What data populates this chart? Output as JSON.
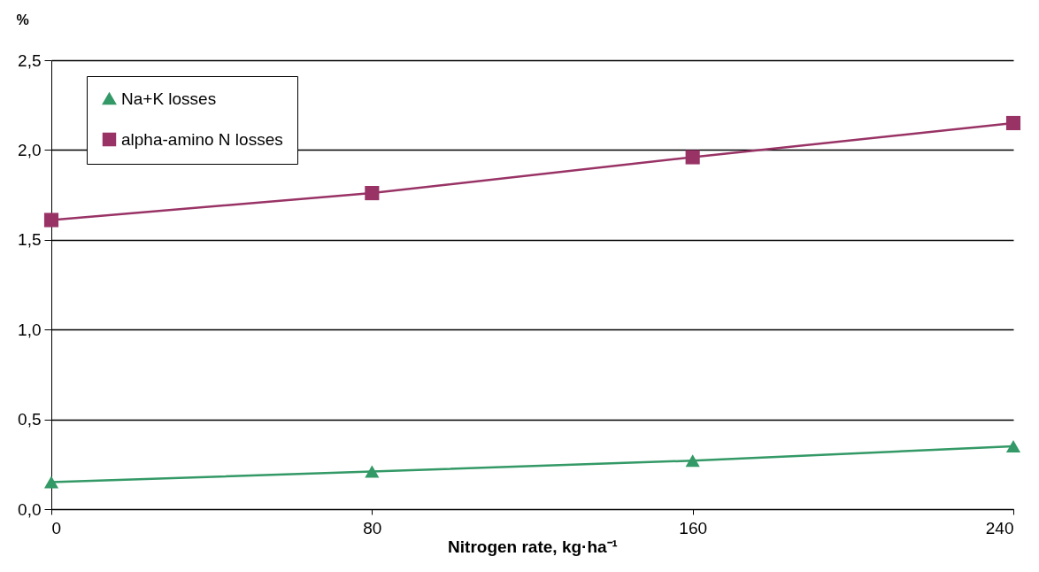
{
  "chart_data": {
    "type": "line",
    "xlabel": "Nitrogen rate, kg·ha⁻¹",
    "ylabel": "%",
    "x": [
      0,
      80,
      160,
      240
    ],
    "series": [
      {
        "name": "Na+K losses",
        "color": "#339966",
        "marker": "triangle",
        "values": [
          0.15,
          0.21,
          0.27,
          0.35
        ]
      },
      {
        "name": "alpha-amino N losses",
        "color": "#993366",
        "marker": "square",
        "values": [
          1.61,
          1.76,
          1.96,
          2.15
        ]
      }
    ],
    "xlim": [
      0,
      240
    ],
    "xticks": [
      0,
      80,
      160,
      240
    ],
    "ylim": [
      0,
      2.5
    ],
    "yticks": [
      {
        "value": 0,
        "label": "0,0"
      },
      {
        "value": 0.5,
        "label": "0,5"
      },
      {
        "value": 1,
        "label": "1,0"
      },
      {
        "value": 1.5,
        "label": "1,5"
      },
      {
        "value": 2,
        "label": "2,0"
      },
      {
        "value": 2.5,
        "label": "2,5"
      }
    ],
    "grid": "y",
    "legend": "top left",
    "line_style": "solid"
  }
}
